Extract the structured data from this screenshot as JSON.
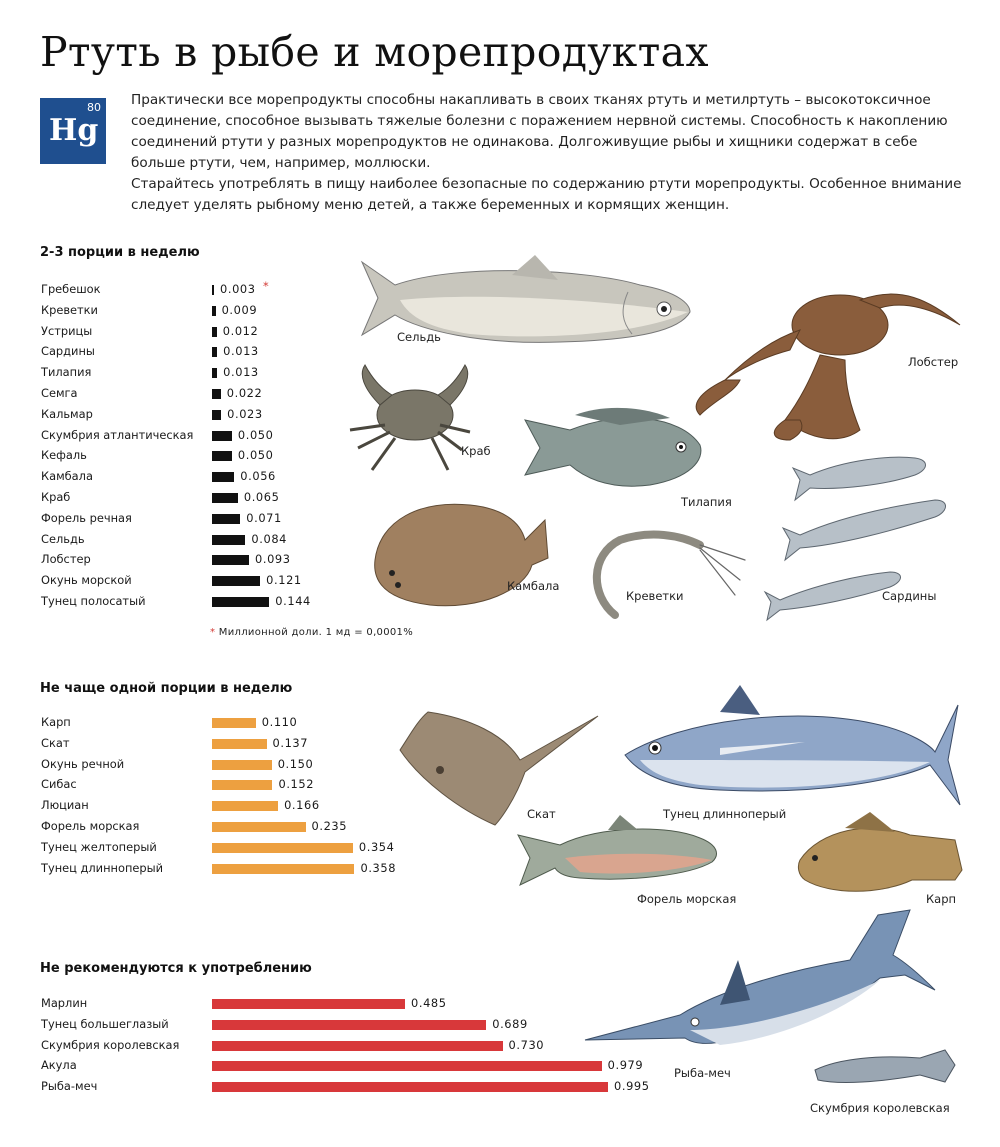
{
  "title": "Ртуть в рыбе и морепродуктах",
  "element": {
    "number": "80",
    "symbol": "Hg"
  },
  "intro": [
    "Практически все морепродукты способны накапливать в своих тканях ртуть и метилртуть – высокотоксичное соединение, способное вызывать тяжелые болезни с поражением нервной системы. Способность к накоплению соединений ртути у разных морепродуктов не одинакова. Долгоживущие рыбы и хищники содержат в себе больше ртути, чем, например, моллюски.",
    "Старайтесь употреблять в пищу наиболее безопасные по содержанию ртути морепродукты. Особенное внимание следует уделять рыбному меню детей, а также беременных и кормящих женщин."
  ],
  "colors": {
    "black": "#111111",
    "orange": "#eda040",
    "red": "#d8383a",
    "accent": "#1f4f8f"
  },
  "footnote": {
    "star": "*",
    "text": "Миллионной доли. 1 мд = 0,0001%"
  },
  "figure_labels": {
    "herring": "Сельдь",
    "lobster": "Лобстер",
    "crab": "Краб",
    "tilapia": "Тилапия",
    "sardines": "Сардины",
    "flounder": "Камбала",
    "shrimp": "Креветки",
    "ray": "Скат",
    "albacore": "Тунец длинноперый",
    "sea_trout": "Форель морская",
    "carp": "Карп",
    "swordfish": "Рыба-меч",
    "king_mackerel": "Скумбрия королевская"
  },
  "chart_data": [
    {
      "type": "bar",
      "orientation": "horizontal",
      "title": "2-3 порции в неделю",
      "color": "#111111",
      "categories": [
        "Гребешок",
        "Креветки",
        "Устрицы",
        "Сардины",
        "Тилапия",
        "Семга",
        "Кальмар",
        "Скумбрия атлантическая",
        "Кефаль",
        "Камбала",
        "Краб",
        "Форель речная",
        "Сельдь",
        "Лобстер",
        "Окунь морской",
        "Тунец полосатый"
      ],
      "values": [
        0.003,
        0.009,
        0.012,
        0.013,
        0.013,
        0.022,
        0.023,
        0.05,
        0.05,
        0.056,
        0.065,
        0.071,
        0.084,
        0.093,
        0.121,
        0.144
      ],
      "labels": [
        "0.003",
        "0.009",
        "0.012",
        "0.013",
        "0.013",
        "0.022",
        "0.023",
        "0.050",
        "0.050",
        "0.056",
        "0.065",
        "0.071",
        "0.084",
        "0.093",
        "0.121",
        "0.144"
      ],
      "annotations": {
        "0": "*"
      }
    },
    {
      "type": "bar",
      "orientation": "horizontal",
      "title": "Не чаще одной порции в неделю",
      "color": "#eda040",
      "categories": [
        "Карп",
        "Скат",
        "Окунь речной",
        "Сибас",
        "Люциан",
        "Форель морская",
        "Тунец желтоперый",
        "Тунец длинноперый"
      ],
      "values": [
        0.11,
        0.137,
        0.15,
        0.152,
        0.166,
        0.235,
        0.354,
        0.358
      ],
      "labels": [
        "0.110",
        "0.137",
        "0.150",
        "0.152",
        "0.166",
        "0.235",
        "0.354",
        "0.358"
      ]
    },
    {
      "type": "bar",
      "orientation": "horizontal",
      "title": "Не рекомендуются к употреблению",
      "color": "#d8383a",
      "categories": [
        "Марлин",
        "Тунец большеглазый",
        "Скумбрия королевская",
        "Акула",
        "Рыба-меч"
      ],
      "values": [
        0.485,
        0.689,
        0.73,
        0.979,
        0.995
      ],
      "labels": [
        "0.485",
        "0.689",
        "0.730",
        "0.979",
        "0.995"
      ]
    }
  ]
}
